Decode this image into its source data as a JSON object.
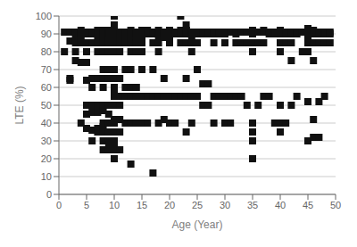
{
  "chart_data": {
    "type": "scatter",
    "xlabel": "Age (Year)",
    "ylabel": "LTE (%)",
    "xlim": [
      0,
      50
    ],
    "ylim": [
      0,
      100
    ],
    "xticks": [
      0,
      5,
      10,
      15,
      20,
      25,
      30,
      35,
      40,
      45,
      50
    ],
    "yticks": [
      0,
      10,
      20,
      30,
      40,
      50,
      60,
      70,
      80,
      90,
      100
    ],
    "marker": "square",
    "color": "#111111",
    "grid": "y",
    "x": [
      1,
      1,
      2,
      2,
      2,
      2,
      3,
      3,
      3,
      3,
      3,
      3,
      4,
      4,
      4,
      4,
      4,
      4,
      4,
      5,
      5,
      5,
      5,
      5,
      5,
      5,
      5,
      5,
      5,
      6,
      6,
      6,
      6,
      6,
      6,
      6,
      6,
      6,
      6,
      7,
      7,
      7,
      7,
      7,
      7,
      7,
      7,
      7,
      7,
      7,
      8,
      8,
      8,
      8,
      8,
      8,
      8,
      8,
      8,
      8,
      8,
      8,
      8,
      8,
      8,
      8,
      8,
      8,
      9,
      9,
      9,
      9,
      9,
      9,
      9,
      9,
      9,
      9,
      9,
      9,
      9,
      9,
      9,
      10,
      10,
      10,
      10,
      10,
      10,
      10,
      10,
      10,
      10,
      10,
      10,
      10,
      10,
      10,
      10,
      10,
      10,
      10,
      10,
      10,
      10,
      10,
      10,
      10,
      11,
      11,
      11,
      11,
      11,
      11,
      11,
      11,
      11,
      11,
      11,
      12,
      12,
      12,
      12,
      12,
      12,
      12,
      12,
      13,
      13,
      13,
      13,
      13,
      13,
      13,
      13,
      13,
      13,
      13,
      13,
      14,
      14,
      14,
      14,
      14,
      14,
      14,
      14,
      15,
      15,
      15,
      15,
      15,
      15,
      15,
      15,
      15,
      16,
      16,
      16,
      16,
      16,
      17,
      17,
      17,
      17,
      17,
      17,
      18,
      18,
      18,
      18,
      18,
      18,
      18,
      18,
      19,
      19,
      19,
      19,
      19,
      19,
      19,
      20,
      20,
      20,
      20,
      20,
      20,
      20,
      21,
      21,
      21,
      21,
      22,
      22,
      22,
      22,
      22,
      22,
      23,
      23,
      23,
      23,
      23,
      23,
      23,
      23,
      23,
      23,
      24,
      24,
      24,
      24,
      24,
      24,
      24,
      25,
      25,
      25,
      25,
      25,
      26,
      26,
      26,
      26,
      27,
      27,
      27,
      27,
      28,
      28,
      28,
      28,
      28,
      29,
      29,
      29,
      30,
      30,
      30,
      30,
      30,
      31,
      31,
      31,
      32,
      32,
      32,
      32,
      33,
      33,
      33,
      34,
      34,
      34,
      35,
      35,
      35,
      35,
      35,
      35,
      35,
      35,
      35,
      36,
      36,
      36,
      37,
      37,
      37,
      37,
      38,
      38,
      38,
      39,
      39,
      39,
      40,
      40,
      40,
      40,
      40,
      40,
      40,
      40,
      41,
      41,
      41,
      41,
      42,
      42,
      42,
      42,
      42,
      43,
      43,
      43,
      44,
      44,
      45,
      45,
      45,
      45,
      45,
      45,
      45,
      45,
      45,
      45,
      46,
      46,
      46,
      46,
      46,
      46,
      46,
      47,
      47,
      47,
      47,
      47,
      48,
      48,
      48,
      48,
      49,
      49,
      49
    ],
    "y": [
      91,
      80,
      91,
      86,
      65,
      64,
      91,
      90,
      86,
      85,
      80,
      75,
      92,
      91,
      90,
      89,
      85,
      74,
      40,
      91,
      91,
      90,
      85,
      80,
      74,
      64,
      50,
      45,
      37,
      91,
      91,
      90,
      85,
      65,
      60,
      50,
      46,
      36,
      30,
      92,
      91,
      90,
      88,
      85,
      80,
      65,
      50,
      46,
      37,
      35,
      92,
      91,
      91,
      90,
      89,
      88,
      85,
      80,
      70,
      65,
      60,
      50,
      47,
      40,
      38,
      35,
      30,
      25,
      92,
      91,
      90,
      89,
      85,
      80,
      70,
      65,
      50,
      45,
      40,
      35,
      30,
      28,
      25,
      100,
      95,
      92,
      91,
      91,
      91,
      90,
      90,
      89,
      88,
      85,
      80,
      70,
      65,
      60,
      57,
      55,
      50,
      42,
      40,
      35,
      30,
      27,
      25,
      20,
      91,
      90,
      89,
      85,
      80,
      65,
      55,
      50,
      42,
      35,
      25,
      91,
      90,
      88,
      85,
      70,
      60,
      55,
      40,
      92,
      91,
      91,
      90,
      88,
      85,
      80,
      70,
      60,
      55,
      40,
      17,
      91,
      90,
      88,
      85,
      80,
      60,
      55,
      40,
      92,
      91,
      90,
      89,
      85,
      80,
      70,
      55,
      40,
      92,
      91,
      90,
      55,
      40,
      91,
      90,
      85,
      70,
      55,
      12,
      92,
      91,
      90,
      88,
      85,
      80,
      55,
      40,
      91,
      91,
      90,
      88,
      65,
      55,
      42,
      92,
      91,
      90,
      88,
      85,
      55,
      40,
      91,
      90,
      55,
      40,
      100,
      92,
      91,
      90,
      85,
      55,
      95,
      92,
      92,
      91,
      91,
      90,
      85,
      65,
      55,
      35,
      91,
      90,
      88,
      85,
      80,
      55,
      40,
      91,
      90,
      85,
      70,
      55,
      91,
      90,
      62,
      50,
      91,
      90,
      62,
      50,
      91,
      90,
      85,
      55,
      40,
      91,
      90,
      55,
      91,
      90,
      85,
      55,
      40,
      91,
      55,
      40,
      91,
      90,
      85,
      55,
      91,
      85,
      55,
      91,
      85,
      50,
      92,
      91,
      90,
      85,
      80,
      40,
      35,
      30,
      20,
      91,
      85,
      50,
      92,
      91,
      85,
      55,
      91,
      90,
      55,
      91,
      90,
      40,
      92,
      91,
      90,
      85,
      80,
      50,
      40,
      35,
      91,
      90,
      85,
      40,
      91,
      90,
      85,
      75,
      50,
      91,
      90,
      55,
      91,
      80,
      93,
      92,
      91,
      91,
      90,
      88,
      85,
      80,
      52,
      30,
      92,
      91,
      90,
      85,
      75,
      42,
      32,
      91,
      90,
      85,
      52,
      32,
      91,
      90,
      85,
      55,
      91,
      90,
      85
    ]
  }
}
